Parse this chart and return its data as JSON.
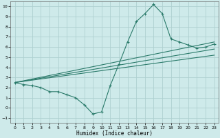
{
  "xlabel": "Humidex (Indice chaleur)",
  "bg_color": "#ceeaea",
  "grid_color": "#aed0d0",
  "line_color": "#2a7a6a",
  "xlim": [
    -0.5,
    23.5
  ],
  "ylim": [
    -1.5,
    10.5
  ],
  "xticks": [
    0,
    1,
    2,
    3,
    4,
    5,
    6,
    7,
    8,
    9,
    10,
    11,
    12,
    13,
    14,
    15,
    16,
    17,
    18,
    19,
    20,
    21,
    22,
    23
  ],
  "yticks": [
    -1,
    0,
    1,
    2,
    3,
    4,
    5,
    6,
    7,
    8,
    9,
    10
  ],
  "series1_x": [
    0,
    1,
    2,
    3,
    4,
    5,
    6,
    7,
    8,
    9,
    10,
    11,
    12,
    13,
    14,
    15,
    16,
    17,
    18,
    19,
    20,
    21,
    22,
    23
  ],
  "series1_y": [
    2.5,
    2.3,
    2.2,
    2.0,
    1.6,
    1.6,
    1.3,
    1.0,
    0.3,
    -0.6,
    -0.4,
    2.2,
    4.3,
    6.5,
    8.5,
    9.3,
    10.2,
    9.3,
    6.8,
    6.5,
    6.2,
    5.9,
    6.0,
    6.3
  ],
  "series2_x": [
    0,
    23
  ],
  "series2_y": [
    2.5,
    6.5
  ],
  "series3_x": [
    0,
    23
  ],
  "series3_y": [
    2.5,
    5.8
  ],
  "series4_x": [
    0,
    23
  ],
  "series4_y": [
    2.5,
    5.2
  ]
}
